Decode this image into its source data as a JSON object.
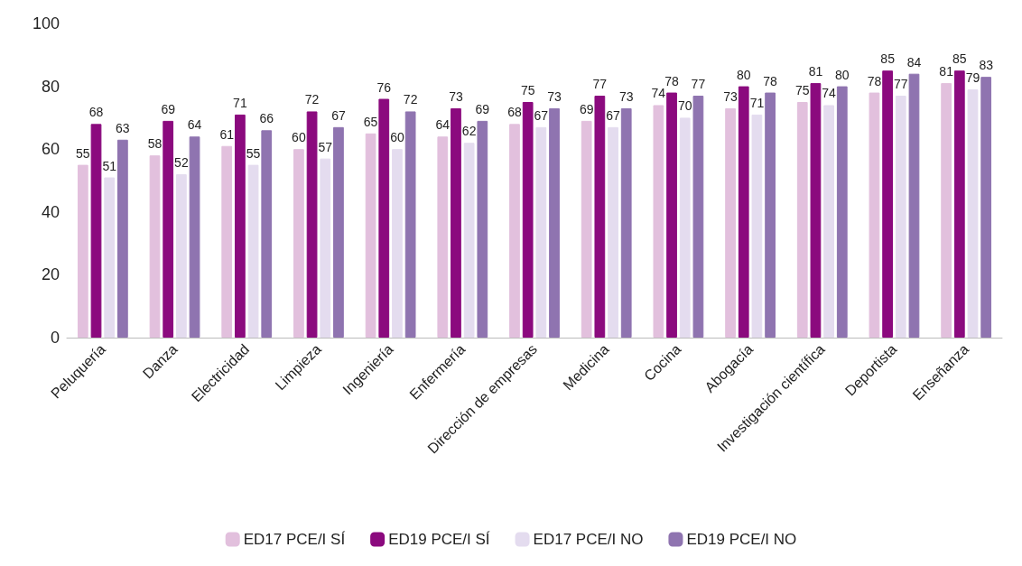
{
  "chart_data": {
    "type": "bar",
    "categories": [
      "Peluquería",
      "Danza",
      "Electricidad",
      "Limpieza",
      "Ingeniería",
      "Enfermería",
      "Dirección de empresas",
      "Medicina",
      "Cocina",
      "Abogacía",
      "Investigación científica",
      "Deportista",
      "Enseñanza"
    ],
    "series": [
      {
        "name": "ED17 PCE/I SÍ",
        "color": "#e2c0dd",
        "values": [
          55,
          58,
          61,
          60,
          65,
          64,
          68,
          69,
          74,
          73,
          75,
          78,
          81
        ]
      },
      {
        "name": "ED19 PCE/I SÍ",
        "color": "#8b0a7e",
        "values": [
          68,
          69,
          71,
          72,
          76,
          73,
          75,
          77,
          78,
          80,
          81,
          85,
          85
        ]
      },
      {
        "name": "ED17 PCE/I NO",
        "color": "#e4dcef",
        "values": [
          51,
          52,
          55,
          57,
          60,
          62,
          67,
          67,
          70,
          71,
          74,
          77,
          79
        ]
      },
      {
        "name": "ED19 PCE/I NO",
        "color": "#8f74b0",
        "values": [
          63,
          64,
          66,
          67,
          72,
          69,
          73,
          73,
          77,
          78,
          80,
          84,
          83
        ]
      }
    ],
    "ylim": [
      0,
      100
    ],
    "yticks": [
      0,
      20,
      40,
      60,
      80,
      100
    ],
    "grid": false,
    "legend": "bottom",
    "data_labels": true
  }
}
